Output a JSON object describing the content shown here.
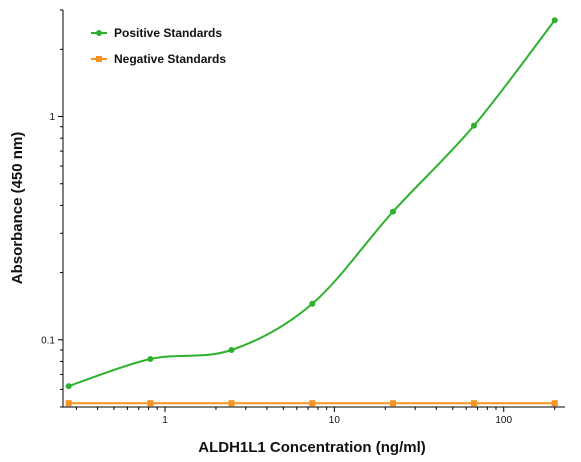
{
  "chart_data": {
    "type": "scatter",
    "title": "",
    "xlabel": "ALDH1L1 Concentration (ng/ml)",
    "ylabel": "Absorbance (450 nm)",
    "xscale": "log",
    "yscale": "log",
    "xlim": [
      0.25,
      230
    ],
    "ylim": [
      0.05,
      3.0
    ],
    "x_ticks": [
      1,
      10,
      100
    ],
    "x_tick_labels": [
      "1",
      "10",
      "100"
    ],
    "y_ticks": [
      0.1,
      1
    ],
    "y_tick_labels": [
      "0.1",
      "1"
    ],
    "grid": false,
    "legend_position": "top-left",
    "series": [
      {
        "name": "Positive Standards",
        "color": "#2db12d",
        "marker": "circle",
        "fit": "smooth curve",
        "x": [
          0.27,
          0.82,
          2.47,
          7.41,
          22.2,
          66.7,
          200
        ],
        "y": [
          0.062,
          0.082,
          0.09,
          0.145,
          0.375,
          0.91,
          2.7
        ]
      },
      {
        "name": "Negative Standards",
        "color": "#f7931e",
        "marker": "square",
        "fit": "straight line",
        "x": [
          0.27,
          0.82,
          2.47,
          7.41,
          22.2,
          66.7,
          200
        ],
        "y": [
          0.052,
          0.052,
          0.052,
          0.052,
          0.052,
          0.052,
          0.052
        ]
      }
    ]
  }
}
